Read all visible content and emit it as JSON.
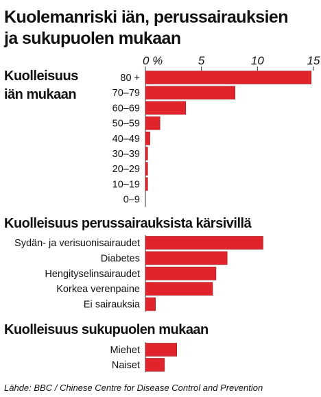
{
  "title_line1": "Kuolemanriski iän, perussairauksien",
  "title_line2": "ja sukupuolen mukaan",
  "source": "Lähde: BBC / Chinese Centre for Disease Control and Prevention",
  "colors": {
    "bar": "#e0242c",
    "bar_edge": "#9a1a1e",
    "text": "#111111",
    "tick_line": "#333333"
  },
  "chart_data": {
    "type": "bar",
    "orientation": "horizontal",
    "xlim": [
      0,
      15
    ],
    "ticks": [
      "0 %",
      "5",
      "10",
      "15"
    ],
    "tick_values": [
      0,
      5,
      10,
      15
    ],
    "grid": false,
    "panels": [
      {
        "title_lines": [
          "Kuolleisuus",
          "iän mukaan"
        ],
        "categories": [
          "80 +",
          "70–79",
          "60–69",
          "50–59",
          "40–49",
          "30–39",
          "20–29",
          "10–19",
          "0–9"
        ],
        "values": [
          14.8,
          8.0,
          3.6,
          1.3,
          0.4,
          0.2,
          0.2,
          0.2,
          0
        ]
      },
      {
        "title_lines": [
          "Kuolleisuus perussairauksista kärsivillä"
        ],
        "categories": [
          "Sydän- ja verisuonisairaudet",
          "Diabetes",
          "Hengityselinsairaudet",
          "Korkea verenpaine",
          "Ei sairauksia"
        ],
        "values": [
          10.5,
          7.3,
          6.3,
          6.0,
          0.9
        ]
      },
      {
        "title_lines": [
          "Kuolleisuus sukupuolen mukaan"
        ],
        "categories": [
          "Miehet",
          "Naiset"
        ],
        "values": [
          2.8,
          1.7
        ]
      }
    ]
  }
}
